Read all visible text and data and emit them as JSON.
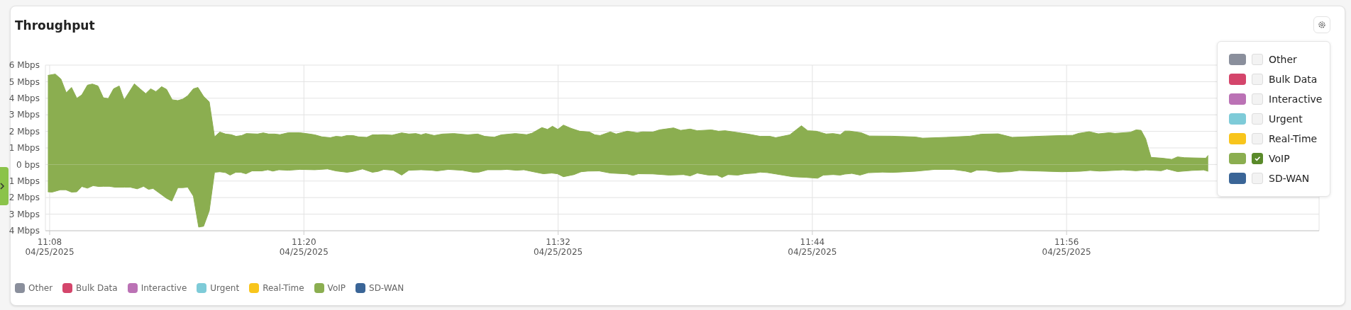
{
  "chart_data": {
    "type": "area",
    "title": "Throughput",
    "xlim": [
      "2025-04-25T11:07:48",
      "2025-04-25T12:07:55"
    ],
    "xticks": [
      {
        "value": "2025-04-25T11:08",
        "label": "11:08\n04/25/2025"
      },
      {
        "value": "2025-04-25T11:20",
        "label": "11:20\n04/25/2025"
      },
      {
        "value": "2025-04-25T11:32",
        "label": "11:32\n04/25/2025"
      },
      {
        "value": "2025-04-25T11:44",
        "label": "11:44\n04/25/2025"
      },
      {
        "value": "2025-04-25T11:56",
        "label": "11:56\n04/25/2025"
      }
    ],
    "ylim": [
      -4,
      6
    ],
    "yticks": [
      {
        "value": 6,
        "label": "6 Mbps"
      },
      {
        "value": 5,
        "label": "5 Mbps"
      },
      {
        "value": 4,
        "label": "4 Mbps"
      },
      {
        "value": 3,
        "label": "3 Mbps"
      },
      {
        "value": 2,
        "label": "2 Mbps"
      },
      {
        "value": 1,
        "label": "1 Mbps"
      },
      {
        "value": 0,
        "label": "0 bps"
      },
      {
        "value": -1,
        "label": "1 Mbps"
      },
      {
        "value": -2,
        "label": "2 Mbps"
      },
      {
        "value": -3,
        "label": "3 Mbps"
      },
      {
        "value": -4,
        "label": "4 Mbps"
      }
    ],
    "grid": true,
    "legend": "bottom",
    "series": [
      {
        "name": "Other",
        "color": "#8a8f9c"
      },
      {
        "name": "Bulk Data",
        "color": "#d4456b"
      },
      {
        "name": "Interactive",
        "color": "#bb72b5"
      },
      {
        "name": "Urgent",
        "color": "#7ecbd8"
      },
      {
        "name": "Real-Time",
        "color": "#f8c51c"
      },
      {
        "name": "VoIP",
        "color": "#8bae50",
        "x": [
          "2025-04-25T11:07:55",
          "2025-04-25T11:08:16",
          "2025-04-25T11:08:32",
          "2025-04-25T11:08:47",
          "2025-04-25T11:09:02",
          "2025-04-25T11:09:17",
          "2025-04-25T11:09:31",
          "2025-04-25T11:09:47",
          "2025-04-25T11:10:01",
          "2025-04-25T11:10:17",
          "2025-04-25T11:10:32",
          "2025-04-25T11:10:46",
          "2025-04-25T11:11:01",
          "2025-04-25T11:11:17",
          "2025-04-25T11:11:31",
          "2025-04-25T11:12:00",
          "2025-04-25T11:12:16",
          "2025-04-25T11:12:32",
          "2025-04-25T11:12:46",
          "2025-04-25T11:13:01",
          "2025-04-25T11:13:17",
          "2025-04-25T11:13:31",
          "2025-04-25T11:13:47",
          "2025-04-25T11:14:03",
          "2025-04-25T11:14:17",
          "2025-04-25T11:14:31",
          "2025-04-25T11:14:47",
          "2025-04-25T11:15:00",
          "2025-04-25T11:15:16",
          "2025-04-25T11:15:32",
          "2025-04-25T11:15:47",
          "2025-04-25T11:16:02",
          "2025-04-25T11:16:18",
          "2025-04-25T11:16:34",
          "2025-04-25T11:16:48",
          "2025-04-25T11:17:04",
          "2025-04-25T11:17:17",
          "2025-04-25T11:17:49",
          "2025-04-25T11:18:05",
          "2025-04-25T11:18:20",
          "2025-04-25T11:18:37",
          "2025-04-25T11:18:52",
          "2025-04-25T11:19:16",
          "2025-04-25T11:19:48",
          "2025-04-25T11:20:16",
          "2025-04-25T11:20:31",
          "2025-04-25T11:20:51",
          "2025-04-25T11:21:15",
          "2025-04-25T11:21:31",
          "2025-04-25T11:21:47",
          "2025-04-25T11:22:02",
          "2025-04-25T11:22:19",
          "2025-04-25T11:22:34",
          "2025-04-25T11:22:58",
          "2025-04-25T11:23:14",
          "2025-04-25T11:23:30",
          "2025-04-25T11:23:46",
          "2025-04-25T11:24:10",
          "2025-04-25T11:24:37",
          "2025-04-25T11:24:57",
          "2025-04-25T11:25:17",
          "2025-04-25T11:25:32",
          "2025-04-25T11:25:45",
          "2025-04-25T11:26:09",
          "2025-04-25T11:26:33",
          "2025-04-25T11:27:05",
          "2025-04-25T11:27:44",
          "2025-04-25T11:28:12",
          "2025-04-25T11:28:32",
          "2025-04-25T11:28:59",
          "2025-04-25T11:29:19",
          "2025-04-25T11:29:59",
          "2025-04-25T11:30:31",
          "2025-04-25T11:30:46",
          "2025-04-25T11:31:14",
          "2025-04-25T11:31:30",
          "2025-04-25T11:31:44",
          "2025-04-25T11:31:59",
          "2025-04-25T11:32:15",
          "2025-04-25T11:32:37",
          "2025-04-25T11:33:01",
          "2025-04-25T11:33:29",
          "2025-04-25T11:33:44",
          "2025-04-25T11:33:59",
          "2025-04-25T11:34:28",
          "2025-04-25T11:34:44",
          "2025-04-25T11:35:16",
          "2025-04-25T11:35:44",
          "2025-04-25T11:35:59",
          "2025-04-25T11:36:28",
          "2025-04-25T11:36:47",
          "2025-04-25T11:37:27",
          "2025-04-25T11:37:47",
          "2025-04-25T11:38:14",
          "2025-04-25T11:38:34",
          "2025-04-25T11:39:14",
          "2025-04-25T11:39:34",
          "2025-04-25T11:39:53",
          "2025-04-25T11:40:57",
          "2025-04-25T11:41:32",
          "2025-04-25T11:42:00",
          "2025-04-25T11:42:16",
          "2025-04-25T11:42:56",
          "2025-04-25T11:43:29",
          "2025-04-25T11:43:47",
          "2025-04-25T11:44:11",
          "2025-04-25T11:44:39",
          "2025-04-25T11:44:59",
          "2025-04-25T11:45:19",
          "2025-04-25T11:45:32",
          "2025-04-25T11:45:45",
          "2025-04-25T11:46:18",
          "2025-04-25T11:46:41",
          "2025-04-25T11:47:45",
          "2025-04-25T11:48:52",
          "2025-04-25T11:49:12",
          "2025-04-25T11:50:19",
          "2025-04-25T11:51:26",
          "2025-04-25T11:51:59",
          "2025-04-25T11:52:46",
          "2025-04-25T11:53:26",
          "2025-04-25T11:54:26",
          "2025-04-25T11:55:00",
          "2025-04-25T11:55:47",
          "2025-04-25T11:56:17",
          "2025-04-25T11:56:34",
          "2025-04-25T11:57:04",
          "2025-04-25T11:57:30",
          "2025-04-25T11:58:01",
          "2025-04-25T11:58:17",
          "2025-04-25T11:59:01",
          "2025-04-25T11:59:17",
          "2025-04-25T11:59:31",
          "2025-04-25T11:59:44",
          "2025-04-25T11:59:59",
          "2025-04-25T12:00:31",
          "2025-04-25T12:00:58",
          "2025-04-25T12:01:14",
          "2025-04-25T12:01:34",
          "2025-04-25T12:02:34",
          "2025-04-25T12:02:41"
        ],
        "values": [
          5.38,
          5.46,
          5.16,
          4.33,
          4.65,
          4.0,
          4.2,
          4.79,
          4.86,
          4.74,
          4.03,
          3.98,
          4.57,
          4.74,
          3.9,
          4.87,
          4.57,
          4.28,
          4.57,
          4.4,
          4.7,
          4.54,
          3.91,
          3.86,
          3.95,
          4.15,
          4.57,
          4.65,
          4.11,
          3.78,
          1.67,
          1.96,
          1.84,
          1.8,
          1.7,
          1.75,
          1.87,
          1.84,
          1.91,
          1.84,
          1.84,
          1.8,
          1.92,
          1.92,
          1.84,
          1.79,
          1.67,
          1.62,
          1.7,
          1.67,
          1.75,
          1.75,
          1.67,
          1.64,
          1.79,
          1.79,
          1.8,
          1.77,
          1.91,
          1.84,
          1.87,
          1.79,
          1.87,
          1.75,
          1.84,
          1.87,
          1.79,
          1.84,
          1.7,
          1.65,
          1.79,
          1.87,
          1.8,
          1.89,
          2.23,
          2.12,
          2.31,
          2.12,
          2.38,
          2.18,
          2.01,
          1.96,
          1.79,
          1.75,
          1.97,
          1.84,
          2.01,
          1.92,
          1.97,
          1.96,
          2.09,
          2.21,
          2.06,
          2.14,
          2.04,
          2.09,
          2.01,
          2.04,
          1.84,
          1.7,
          1.7,
          1.62,
          1.79,
          2.34,
          2.04,
          2.01,
          1.84,
          1.87,
          1.8,
          2.02,
          2.02,
          1.92,
          1.72,
          1.71,
          1.66,
          1.59,
          1.64,
          1.71,
          1.83,
          1.85,
          1.64,
          1.69,
          1.72,
          1.75,
          1.76,
          1.88,
          1.98,
          1.85,
          1.92,
          1.88,
          1.95,
          2.09,
          2.06,
          1.55,
          0.43,
          0.38,
          0.31,
          0.46,
          0.41,
          0.38,
          0.55
        ]
      },
      {
        "color": "#8bae50",
        "x": [
          "2025-04-25T11:07:55",
          "2025-04-25T11:08:07",
          "2025-04-25T11:08:30",
          "2025-04-25T11:08:46",
          "2025-04-25T11:09:02",
          "2025-04-25T11:09:17",
          "2025-04-25T11:09:31",
          "2025-04-25T11:09:47",
          "2025-04-25T11:10:03",
          "2025-04-25T11:10:19",
          "2025-04-25T11:10:32",
          "2025-04-25T11:10:49",
          "2025-04-25T11:11:05",
          "2025-04-25T11:11:32",
          "2025-04-25T11:11:48",
          "2025-04-25T11:12:08",
          "2025-04-25T11:12:26",
          "2025-04-25T11:12:40",
          "2025-04-25T11:12:53",
          "2025-04-25T11:13:31",
          "2025-04-25T11:13:46",
          "2025-04-25T11:14:03",
          "2025-04-25T11:14:17",
          "2025-04-25T11:14:31",
          "2025-04-25T11:14:47",
          "2025-04-25T11:15:02",
          "2025-04-25T11:15:16",
          "2025-04-25T11:15:32",
          "2025-04-25T11:15:47",
          "2025-04-25T11:16:02",
          "2025-04-25T11:16:18",
          "2025-04-25T11:16:31",
          "2025-04-25T11:16:47",
          "2025-04-25T11:17:01",
          "2025-04-25T11:17:16",
          "2025-04-25T11:17:33",
          "2025-04-25T11:18:01",
          "2025-04-25T11:18:18",
          "2025-04-25T11:18:32",
          "2025-04-25T11:18:49",
          "2025-04-25T11:19:16",
          "2025-04-25T11:19:48",
          "2025-04-25T11:20:31",
          "2025-04-25T11:21:07",
          "2025-04-25T11:21:31",
          "2025-04-25T11:22:02",
          "2025-04-25T11:22:19",
          "2025-04-25T11:22:46",
          "2025-04-25T11:23:14",
          "2025-04-25T11:23:30",
          "2025-04-25T11:23:46",
          "2025-04-25T11:24:13",
          "2025-04-25T11:24:37",
          "2025-04-25T11:24:57",
          "2025-04-25T11:25:32",
          "2025-04-25T11:26:01",
          "2025-04-25T11:26:17",
          "2025-04-25T11:26:49",
          "2025-04-25T11:27:28",
          "2025-04-25T11:28:00",
          "2025-04-25T11:28:16",
          "2025-04-25T11:28:40",
          "2025-04-25T11:29:19",
          "2025-04-25T11:29:35",
          "2025-04-25T11:30:02",
          "2025-04-25T11:30:23",
          "2025-04-25T11:30:50",
          "2025-04-25T11:31:18",
          "2025-04-25T11:31:42",
          "2025-04-25T11:31:58",
          "2025-04-25T11:32:15",
          "2025-04-25T11:32:45",
          "2025-04-25T11:33:05",
          "2025-04-25T11:33:25",
          "2025-04-25T11:33:56",
          "2025-04-25T11:34:28",
          "2025-04-25T11:35:16",
          "2025-04-25T11:35:32",
          "2025-04-25T11:35:47",
          "2025-04-25T11:36:28",
          "2025-04-25T11:37:15",
          "2025-04-25T11:37:55",
          "2025-04-25T11:38:14",
          "2025-04-25T11:38:34",
          "2025-04-25T11:39:06",
          "2025-04-25T11:39:30",
          "2025-04-25T11:39:44",
          "2025-04-25T11:40:01",
          "2025-04-25T11:40:29",
          "2025-04-25T11:40:49",
          "2025-04-25T11:41:17",
          "2025-04-25T11:41:32",
          "2025-04-25T11:41:52",
          "2025-04-25T11:42:16",
          "2025-04-25T11:43:04",
          "2025-04-25T11:43:43",
          "2025-04-25T11:44:15",
          "2025-04-25T11:44:31",
          "2025-04-25T11:44:59",
          "2025-04-25T11:45:19",
          "2025-04-25T11:45:32",
          "2025-04-25T11:45:52",
          "2025-04-25T11:46:15",
          "2025-04-25T11:46:38",
          "2025-04-25T11:47:19",
          "2025-04-25T11:47:45",
          "2025-04-25T11:48:52",
          "2025-04-25T11:49:46",
          "2025-04-25T11:50:39",
          "2025-04-25T11:51:13",
          "2025-04-25T11:51:29",
          "2025-04-25T11:51:46",
          "2025-04-25T11:52:13",
          "2025-04-25T11:52:46",
          "2025-04-25T11:53:20",
          "2025-04-25T11:53:46",
          "2025-04-25T11:54:46",
          "2025-04-25T11:55:47",
          "2025-04-25T11:56:40",
          "2025-04-25T11:57:07",
          "2025-04-25T11:57:34",
          "2025-04-25T11:58:40",
          "2025-04-25T11:59:17",
          "2025-04-25T11:59:44",
          "2025-04-25T12:00:28",
          "2025-04-25T12:00:44",
          "2025-04-25T12:01:14",
          "2025-04-25T12:01:55",
          "2025-04-25T12:02:28",
          "2025-04-25T12:02:41"
        ],
        "values": [
          -1.65,
          -1.67,
          -1.53,
          -1.53,
          -1.67,
          -1.65,
          -1.33,
          -1.43,
          -1.28,
          -1.33,
          -1.32,
          -1.32,
          -1.37,
          -1.37,
          -1.37,
          -1.47,
          -1.32,
          -1.5,
          -1.45,
          -2.04,
          -2.21,
          -1.4,
          -1.4,
          -1.37,
          -1.91,
          -3.78,
          -3.73,
          -2.8,
          -0.47,
          -0.44,
          -0.49,
          -0.64,
          -0.47,
          -0.47,
          -0.56,
          -0.39,
          -0.39,
          -0.32,
          -0.4,
          -0.32,
          -0.35,
          -0.3,
          -0.32,
          -0.27,
          -0.39,
          -0.47,
          -0.42,
          -0.27,
          -0.47,
          -0.42,
          -0.3,
          -0.35,
          -0.64,
          -0.35,
          -0.32,
          -0.35,
          -0.39,
          -0.3,
          -0.35,
          -0.47,
          -0.46,
          -0.32,
          -0.32,
          -0.3,
          -0.35,
          -0.32,
          -0.44,
          -0.56,
          -0.52,
          -0.56,
          -0.74,
          -0.61,
          -0.44,
          -0.4,
          -0.39,
          -0.52,
          -0.57,
          -0.66,
          -0.56,
          -0.57,
          -0.64,
          -0.61,
          -0.69,
          -0.52,
          -0.64,
          -0.64,
          -0.78,
          -0.61,
          -0.64,
          -0.56,
          -0.52,
          -0.46,
          -0.49,
          -0.57,
          -0.74,
          -0.78,
          -0.83,
          -0.64,
          -0.61,
          -0.64,
          -0.58,
          -0.54,
          -0.64,
          -0.5,
          -0.46,
          -0.48,
          -0.41,
          -0.3,
          -0.3,
          -0.4,
          -0.48,
          -0.34,
          -0.36,
          -0.46,
          -0.44,
          -0.36,
          -0.4,
          -0.44,
          -0.41,
          -0.36,
          -0.4,
          -0.33,
          -0.38,
          -0.33,
          -0.38,
          -0.27,
          -0.43,
          -0.36,
          -0.33,
          -0.41
        ]
      },
      {
        "name": "SD-WAN",
        "color": "#3a6597"
      }
    ]
  }
}
